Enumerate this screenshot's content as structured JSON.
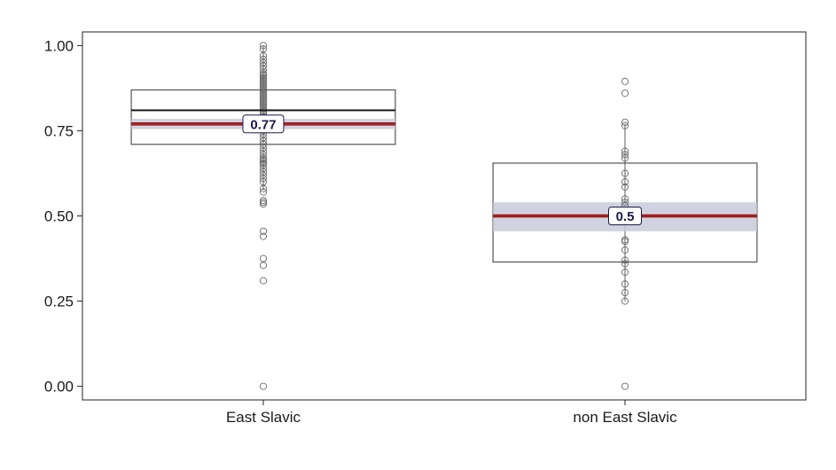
{
  "chart_data": {
    "type": "box",
    "title": "",
    "xlabel": "",
    "ylabel": "",
    "ylim": [
      -0.04,
      1.04
    ],
    "yticks": [
      {
        "value": 0.0,
        "label": "0.00"
      },
      {
        "value": 0.25,
        "label": "0.25"
      },
      {
        "value": 0.5,
        "label": "0.50"
      },
      {
        "value": 0.75,
        "label": "0.75"
      },
      {
        "value": 1.0,
        "label": "1.00"
      }
    ],
    "categories": [
      "East Slavic",
      "non East Slavic"
    ],
    "groups": [
      {
        "category": "East Slavic",
        "q1": 0.71,
        "median": 0.81,
        "q3": 0.87,
        "mean": 0.77,
        "mean_label": "0.77",
        "ci": [
          0.755,
          0.785
        ],
        "whisker": [
          0.575,
          1.0
        ],
        "points": [
          1.0,
          0.99,
          0.97,
          0.96,
          0.95,
          0.94,
          0.93,
          0.92,
          0.915,
          0.91,
          0.905,
          0.9,
          0.895,
          0.89,
          0.885,
          0.88,
          0.875,
          0.87,
          0.865,
          0.86,
          0.855,
          0.85,
          0.845,
          0.84,
          0.835,
          0.83,
          0.825,
          0.82,
          0.815,
          0.81,
          0.805,
          0.8,
          0.79,
          0.78,
          0.77,
          0.76,
          0.75,
          0.74,
          0.73,
          0.72,
          0.71,
          0.7,
          0.69,
          0.68,
          0.67,
          0.665,
          0.66,
          0.655,
          0.65,
          0.64,
          0.63,
          0.62,
          0.61,
          0.6,
          0.58,
          0.57,
          0.545,
          0.54,
          0.535,
          0.455,
          0.44,
          0.375,
          0.355,
          0.31,
          0.0
        ]
      },
      {
        "category": "non East Slavic",
        "q1": 0.365,
        "median": 0.5,
        "q3": 0.655,
        "mean": 0.5,
        "mean_label": "0.5",
        "ci": [
          0.455,
          0.54
        ],
        "whisker": [
          0.25,
          0.77
        ],
        "points": [
          0.895,
          0.86,
          0.775,
          0.765,
          0.69,
          0.68,
          0.67,
          0.625,
          0.6,
          0.585,
          0.55,
          0.54,
          0.53,
          0.5,
          0.43,
          0.425,
          0.4,
          0.37,
          0.36,
          0.335,
          0.3,
          0.275,
          0.25,
          0.0
        ]
      }
    ],
    "grid": false,
    "legend": "none",
    "colors": {
      "box_stroke": "#333333",
      "median_line": "#1a1a1a",
      "mean_line": "#cc1f1f",
      "ci_band": "#c9cad9",
      "point_stroke": "#6a6a6a",
      "label_stroke": "#1a1a4a"
    }
  }
}
